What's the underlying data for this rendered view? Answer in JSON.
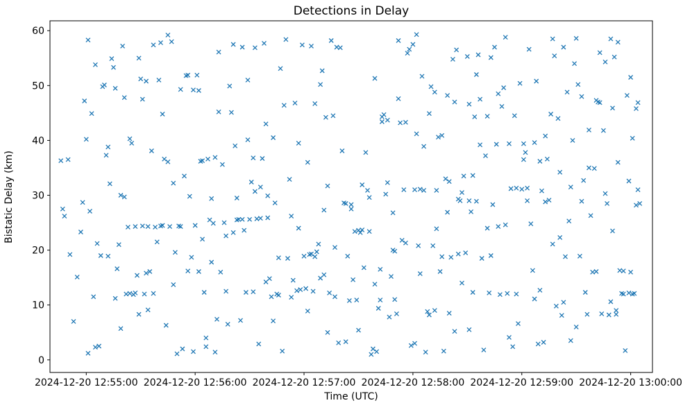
{
  "figure": {
    "title": "Detections in Delay",
    "xlabel": "Time (UTC)",
    "ylabel": "Bistatic Delay (km)"
  },
  "chart_data": {
    "type": "scatter",
    "title": "Detections in Delay",
    "xlabel": "Time (UTC)",
    "ylabel": "Bistatic Delay (km)",
    "marker": "x",
    "marker_color": "#1f77b4",
    "grid": false,
    "legend": "none",
    "x_time_base": "2024-12-20 12:55:00",
    "xlim_seconds": [
      -20,
      312
    ],
    "ylim": [
      -2.3,
      61.8
    ],
    "x_tick_seconds": [
      0,
      60,
      120,
      180,
      240,
      300
    ],
    "x_tick_labels": [
      "2024-12-20 12:55:00",
      "2024-12-20 12:56:00",
      "2024-12-20 12:57:00",
      "2024-12-20 12:58:00",
      "2024-12-20 12:59:00",
      "2024-12-20 13:00:00"
    ],
    "y_ticks": [
      0,
      10,
      20,
      30,
      40,
      50,
      60
    ],
    "points_format": "[seconds_after_12:55:00, bistatic_delay_km]",
    "points": [
      [
        -13,
        27.5
      ],
      [
        -12,
        26.2
      ],
      [
        -14,
        36.3
      ],
      [
        -10,
        36.5
      ],
      [
        -9,
        19.2
      ],
      [
        -7,
        7.0
      ],
      [
        -5,
        15.1
      ],
      [
        -3,
        23.3
      ],
      [
        -2,
        28.7
      ],
      [
        -1,
        47.2
      ],
      [
        0,
        40.2
      ],
      [
        1,
        58.3
      ],
      [
        1,
        1.2
      ],
      [
        2,
        27.1
      ],
      [
        3,
        44.9
      ],
      [
        4,
        11.5
      ],
      [
        5,
        53.8
      ],
      [
        5,
        2.3
      ],
      [
        6,
        21.2
      ],
      [
        7,
        2.5
      ],
      [
        8,
        19.0
      ],
      [
        9,
        49.8
      ],
      [
        10,
        50.1
      ],
      [
        11,
        37.3
      ],
      [
        12,
        18.9
      ],
      [
        12,
        38.8
      ],
      [
        13,
        32.1
      ],
      [
        14,
        54.9
      ],
      [
        15,
        53.3
      ],
      [
        16,
        49.5
      ],
      [
        16,
        11.2
      ],
      [
        17,
        16.6
      ],
      [
        18,
        21.0
      ],
      [
        19,
        30.0
      ],
      [
        19,
        5.7
      ],
      [
        20,
        57.2
      ],
      [
        21,
        47.8
      ],
      [
        21,
        29.7
      ],
      [
        22,
        12.0
      ],
      [
        23,
        24.2
      ],
      [
        24,
        12.1
      ],
      [
        24,
        40.3
      ],
      [
        25,
        39.5
      ],
      [
        26,
        11.9
      ],
      [
        27,
        24.3
      ],
      [
        27,
        12.2
      ],
      [
        28,
        15.4
      ],
      [
        29,
        8.3
      ],
      [
        29,
        55.0
      ],
      [
        30,
        51.2
      ],
      [
        31,
        24.4
      ],
      [
        31,
        47.5
      ],
      [
        32,
        12.0
      ],
      [
        33,
        50.8
      ],
      [
        33,
        15.8
      ],
      [
        34,
        24.3
      ],
      [
        34,
        9.1
      ],
      [
        35,
        16.1
      ],
      [
        36,
        38.1
      ],
      [
        37,
        12.1
      ],
      [
        37,
        57.4
      ],
      [
        38,
        24.2
      ],
      [
        39,
        21.5
      ],
      [
        40,
        51.0
      ],
      [
        41,
        24.4
      ],
      [
        41,
        57.8
      ],
      [
        42,
        44.8
      ],
      [
        42,
        24.5
      ],
      [
        43,
        36.6
      ],
      [
        44,
        6.3
      ],
      [
        45,
        59.2
      ],
      [
        45,
        36.1
      ],
      [
        46,
        24.3
      ],
      [
        47,
        58.0
      ],
      [
        48,
        32.2
      ],
      [
        48,
        13.7
      ],
      [
        49,
        19.6
      ],
      [
        50,
        1.1
      ],
      [
        51,
        24.4
      ],
      [
        52,
        49.3
      ],
      [
        52,
        24.3
      ],
      [
        53,
        2.0
      ],
      [
        54,
        33.5
      ],
      [
        55,
        51.8
      ],
      [
        56,
        51.9
      ],
      [
        56,
        16.2
      ],
      [
        57,
        29.8
      ],
      [
        58,
        18.7
      ],
      [
        59,
        1.5
      ],
      [
        59,
        49.2
      ],
      [
        60,
        24.5
      ],
      [
        61,
        51.9
      ],
      [
        62,
        16.1
      ],
      [
        62,
        49.1
      ],
      [
        63,
        36.2
      ],
      [
        64,
        22.0
      ],
      [
        64,
        36.3
      ],
      [
        65,
        12.3
      ],
      [
        66,
        4.0
      ],
      [
        66,
        2.4
      ],
      [
        67,
        36.6
      ],
      [
        68,
        25.5
      ],
      [
        69,
        17.8
      ],
      [
        69,
        29.4
      ],
      [
        70,
        24.9
      ],
      [
        71,
        1.4
      ],
      [
        71,
        36.9
      ],
      [
        72,
        7.4
      ],
      [
        73,
        45.2
      ],
      [
        73,
        56.1
      ],
      [
        74,
        16.0
      ],
      [
        75,
        35.6
      ],
      [
        76,
        25.0
      ],
      [
        77,
        12.5
      ],
      [
        77,
        22.6
      ],
      [
        78,
        6.5
      ],
      [
        79,
        49.9
      ],
      [
        80,
        45.1
      ],
      [
        81,
        23.2
      ],
      [
        81,
        57.5
      ],
      [
        82,
        39.0
      ],
      [
        83,
        25.5
      ],
      [
        83,
        29.5
      ],
      [
        84,
        25.6
      ],
      [
        85,
        7.2
      ],
      [
        86,
        57.0
      ],
      [
        86,
        25.6
      ],
      [
        87,
        23.6
      ],
      [
        88,
        12.3
      ],
      [
        89,
        51.0
      ],
      [
        89,
        40.1
      ],
      [
        90,
        25.6
      ],
      [
        91,
        32.4
      ],
      [
        92,
        36.8
      ],
      [
        92,
        12.4
      ],
      [
        93,
        30.7
      ],
      [
        93,
        56.9
      ],
      [
        94,
        25.7
      ],
      [
        95,
        2.9
      ],
      [
        96,
        31.5
      ],
      [
        96,
        25.8
      ],
      [
        97,
        36.7
      ],
      [
        98,
        57.7
      ],
      [
        99,
        14.2
      ],
      [
        99,
        43.0
      ],
      [
        100,
        29.9
      ],
      [
        100,
        25.9
      ],
      [
        101,
        14.8
      ],
      [
        102,
        11.5
      ],
      [
        103,
        40.5
      ],
      [
        103,
        7.1
      ],
      [
        104,
        28.6
      ],
      [
        105,
        12.0
      ],
      [
        106,
        11.8
      ],
      [
        106,
        18.6
      ],
      [
        107,
        53.1
      ],
      [
        108,
        1.6
      ],
      [
        109,
        46.4
      ],
      [
        110,
        58.4
      ],
      [
        111,
        18.5
      ],
      [
        112,
        32.9
      ],
      [
        113,
        26.2
      ],
      [
        113,
        11.4
      ],
      [
        114,
        14.5
      ],
      [
        115,
        46.8
      ],
      [
        116,
        12.6
      ],
      [
        117,
        39.5
      ],
      [
        117,
        24.0
      ],
      [
        118,
        12.8
      ],
      [
        119,
        57.4
      ],
      [
        120,
        18.9
      ],
      [
        121,
        13.0
      ],
      [
        122,
        8.9
      ],
      [
        122,
        36.0
      ],
      [
        123,
        19.2
      ],
      [
        124,
        57.2
      ],
      [
        124,
        19.3
      ],
      [
        125,
        12.5
      ],
      [
        126,
        18.8
      ],
      [
        126,
        46.7
      ],
      [
        127,
        19.7
      ],
      [
        128,
        21.1
      ],
      [
        129,
        50.2
      ],
      [
        129,
        14.9
      ],
      [
        130,
        52.7
      ],
      [
        131,
        15.5
      ],
      [
        131,
        27.3
      ],
      [
        132,
        44.2
      ],
      [
        133,
        5.0
      ],
      [
        133,
        31.7
      ],
      [
        134,
        12.2
      ],
      [
        135,
        58.2
      ],
      [
        136,
        44.5
      ],
      [
        137,
        11.5
      ],
      [
        137,
        20.5
      ],
      [
        138,
        57.0
      ],
      [
        139,
        3.1
      ],
      [
        140,
        56.9
      ],
      [
        141,
        38.1
      ],
      [
        142,
        28.6
      ],
      [
        143,
        3.3
      ],
      [
        143,
        28.5
      ],
      [
        144,
        18.9
      ],
      [
        145,
        10.8
      ],
      [
        146,
        28.3
      ],
      [
        146,
        27.5
      ],
      [
        147,
        14.6
      ],
      [
        148,
        23.4
      ],
      [
        149,
        10.9
      ],
      [
        150,
        5.4
      ],
      [
        150,
        23.6
      ],
      [
        151,
        23.2
      ],
      [
        152,
        23.7
      ],
      [
        152,
        31.9
      ],
      [
        153,
        16.8
      ],
      [
        154,
        37.8
      ],
      [
        155,
        30.9
      ],
      [
        156,
        23.4
      ],
      [
        156,
        29.6
      ],
      [
        157,
        1.0
      ],
      [
        158,
        2.0
      ],
      [
        159,
        13.8
      ],
      [
        159,
        51.3
      ],
      [
        160,
        1.5
      ],
      [
        161,
        9.4
      ],
      [
        162,
        16.5
      ],
      [
        162,
        10.9
      ],
      [
        163,
        44.3
      ],
      [
        163,
        43.4
      ],
      [
        164,
        44.7
      ],
      [
        165,
        30.2
      ],
      [
        166,
        43.7
      ],
      [
        166,
        32.3
      ],
      [
        167,
        7.8
      ],
      [
        168,
        15.2
      ],
      [
        169,
        26.8
      ],
      [
        169,
        20.0
      ],
      [
        170,
        19.8
      ],
      [
        170,
        11.0
      ],
      [
        171,
        8.4
      ],
      [
        172,
        47.6
      ],
      [
        172,
        58.2
      ],
      [
        173,
        43.2
      ],
      [
        174,
        21.8
      ],
      [
        175,
        31.0
      ],
      [
        176,
        21.3
      ],
      [
        176,
        43.3
      ],
      [
        177,
        55.9
      ],
      [
        178,
        56.6
      ],
      [
        179,
        2.6
      ],
      [
        180,
        57.5
      ],
      [
        181,
        31.0
      ],
      [
        181,
        3.0
      ],
      [
        182,
        41.2
      ],
      [
        182,
        59.3
      ],
      [
        183,
        20.8
      ],
      [
        184,
        31.1
      ],
      [
        184,
        15.7
      ],
      [
        185,
        51.7
      ],
      [
        186,
        38.9
      ],
      [
        186,
        30.9
      ],
      [
        187,
        1.4
      ],
      [
        188,
        8.8
      ],
      [
        189,
        8.2
      ],
      [
        189,
        44.9
      ],
      [
        190,
        49.8
      ],
      [
        191,
        20.8
      ],
      [
        192,
        48.8
      ],
      [
        192,
        9.0
      ],
      [
        193,
        30.9
      ],
      [
        193,
        23.9
      ],
      [
        194,
        40.6
      ],
      [
        195,
        16.1
      ],
      [
        196,
        18.8
      ],
      [
        196,
        40.9
      ],
      [
        197,
        1.6
      ],
      [
        198,
        33.0
      ],
      [
        199,
        48.2
      ],
      [
        199,
        26.9
      ],
      [
        200,
        32.5
      ],
      [
        200,
        8.5
      ],
      [
        201,
        18.7
      ],
      [
        202,
        54.8
      ],
      [
        203,
        5.2
      ],
      [
        203,
        47.0
      ],
      [
        204,
        56.5
      ],
      [
        205,
        19.3
      ],
      [
        205,
        29.3
      ],
      [
        206,
        29.0
      ],
      [
        207,
        14.0
      ],
      [
        207,
        30.5
      ],
      [
        208,
        33.5
      ],
      [
        209,
        19.5
      ],
      [
        210,
        55.3
      ],
      [
        211,
        46.6
      ],
      [
        211,
        29.0
      ],
      [
        211,
        5.5
      ],
      [
        212,
        27.0
      ],
      [
        213,
        12.3
      ],
      [
        213,
        33.6
      ],
      [
        214,
        44.3
      ],
      [
        215,
        52.0
      ],
      [
        215,
        28.9
      ],
      [
        216,
        55.6
      ],
      [
        217,
        39.2
      ],
      [
        217,
        47.5
      ],
      [
        218,
        18.5
      ],
      [
        219,
        1.8
      ],
      [
        220,
        37.2
      ],
      [
        221,
        24.0
      ],
      [
        221,
        44.4
      ],
      [
        222,
        12.2
      ],
      [
        223,
        55.1
      ],
      [
        223,
        19.0
      ],
      [
        224,
        28.3
      ],
      [
        225,
        57.0
      ],
      [
        226,
        39.3
      ],
      [
        227,
        24.3
      ],
      [
        227,
        48.5
      ],
      [
        228,
        11.9
      ],
      [
        229,
        46.2
      ],
      [
        230,
        49.6
      ],
      [
        231,
        24.6
      ],
      [
        231,
        58.8
      ],
      [
        232,
        12.1
      ],
      [
        233,
        39.4
      ],
      [
        233,
        4.1
      ],
      [
        234,
        31.2
      ],
      [
        235,
        2.4
      ],
      [
        236,
        44.5
      ],
      [
        237,
        12.0
      ],
      [
        237,
        31.3
      ],
      [
        238,
        6.6
      ],
      [
        239,
        50.4
      ],
      [
        240,
        31.1
      ],
      [
        241,
        39.4
      ],
      [
        241,
        36.5
      ],
      [
        242,
        37.8
      ],
      [
        243,
        31.3
      ],
      [
        243,
        29.0
      ],
      [
        244,
        56.6
      ],
      [
        245,
        24.8
      ],
      [
        246,
        16.3
      ],
      [
        247,
        39.6
      ],
      [
        247,
        11.1
      ],
      [
        248,
        50.8
      ],
      [
        249,
        2.9
      ],
      [
        250,
        12.7
      ],
      [
        250,
        36.2
      ],
      [
        251,
        30.8
      ],
      [
        252,
        3.2
      ],
      [
        253,
        28.8
      ],
      [
        253,
        40.8
      ],
      [
        254,
        36.6
      ],
      [
        255,
        29.1
      ],
      [
        256,
        44.8
      ],
      [
        257,
        21.1
      ],
      [
        257,
        58.5
      ],
      [
        258,
        55.4
      ],
      [
        259,
        9.8
      ],
      [
        260,
        44.0
      ],
      [
        261,
        34.2
      ],
      [
        261,
        22.3
      ],
      [
        262,
        8.1
      ],
      [
        263,
        57.0
      ],
      [
        263,
        10.5
      ],
      [
        264,
        18.8
      ],
      [
        265,
        48.8
      ],
      [
        266,
        25.3
      ],
      [
        267,
        31.5
      ],
      [
        267,
        3.5
      ],
      [
        268,
        40.0
      ],
      [
        269,
        54.0
      ],
      [
        270,
        58.6
      ],
      [
        270,
        6.0
      ],
      [
        271,
        50.2
      ],
      [
        272,
        18.9
      ],
      [
        273,
        28.9
      ],
      [
        273,
        48.0
      ],
      [
        274,
        32.7
      ],
      [
        275,
        12.3
      ],
      [
        276,
        8.3
      ],
      [
        277,
        41.9
      ],
      [
        277,
        35.0
      ],
      [
        278,
        26.3
      ],
      [
        279,
        16.0
      ],
      [
        280,
        34.9
      ],
      [
        281,
        47.3
      ],
      [
        281,
        16.1
      ],
      [
        282,
        47.0
      ],
      [
        283,
        46.9
      ],
      [
        283,
        56.0
      ],
      [
        284,
        8.4
      ],
      [
        285,
        41.8
      ],
      [
        286,
        30.3
      ],
      [
        286,
        54.3
      ],
      [
        287,
        28.5
      ],
      [
        288,
        8.2
      ],
      [
        289,
        10.6
      ],
      [
        289,
        58.5
      ],
      [
        290,
        23.5
      ],
      [
        290,
        45.9
      ],
      [
        291,
        55.2
      ],
      [
        292,
        9.0
      ],
      [
        292,
        8.3
      ],
      [
        293,
        36.0
      ],
      [
        293,
        57.9
      ],
      [
        294,
        16.3
      ],
      [
        295,
        12.1
      ],
      [
        296,
        16.2
      ],
      [
        296,
        12.0
      ],
      [
        297,
        1.7
      ],
      [
        298,
        48.2
      ],
      [
        299,
        32.6
      ],
      [
        299,
        12.2
      ],
      [
        300,
        51.5
      ],
      [
        300,
        16.0
      ],
      [
        301,
        40.4
      ],
      [
        301,
        12.0
      ],
      [
        302,
        12.1
      ],
      [
        303,
        28.2
      ],
      [
        303,
        45.8
      ],
      [
        304,
        46.9
      ],
      [
        304,
        31.0
      ],
      [
        305,
        28.5
      ]
    ]
  }
}
